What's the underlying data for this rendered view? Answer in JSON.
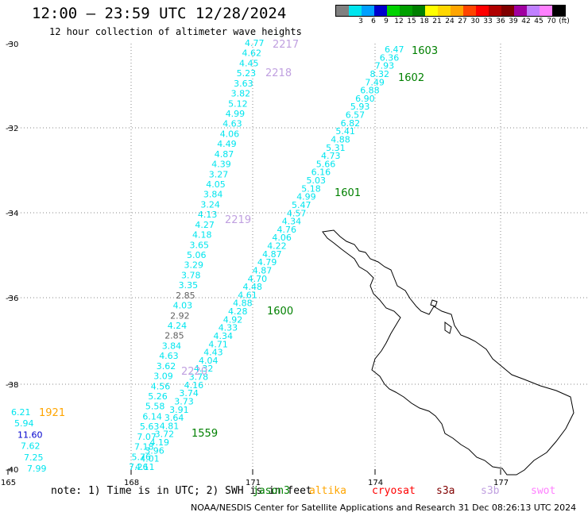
{
  "title": "12:00 — 23:59 UTC 12/28/2024",
  "subtitle": "12 hour collection of altimeter wave heights",
  "colorbar": {
    "colors": [
      "#808080",
      "#00e5ee",
      "#00a0ff",
      "#0000cd",
      "#00d200",
      "#00a000",
      "#008000",
      "#ffff00",
      "#ffd700",
      "#ffa500",
      "#ff4500",
      "#ff0000",
      "#b00000",
      "#800000",
      "#a000a0",
      "#c080ff",
      "#ff80ff",
      "#000000"
    ],
    "labels": [
      "",
      "3",
      "6",
      "9",
      "12",
      "15",
      "18",
      "21",
      "24",
      "27",
      "30",
      "33",
      "36",
      "39",
      "42",
      "45",
      "70",
      "(ft)"
    ]
  },
  "lat_labels": [
    "-30",
    "-32",
    "-34",
    "-36",
    "-38",
    "-40"
  ],
  "lon_labels": [
    "165",
    "168",
    "171",
    "174",
    "177"
  ],
  "tracks": [
    {
      "color": "#00e5ee",
      "values": [
        "4.77",
        "4.62",
        "4.45",
        "5.23",
        "3.63",
        "3.82",
        "5.12",
        "4.99",
        "4.63",
        "4.06",
        "4.49",
        "4.87",
        "4.39",
        "3.27",
        "4.05",
        "3.84",
        "3.24",
        "4.13",
        "4.27",
        "4.18",
        "3.65",
        "5.06",
        "3.29",
        "3.78",
        "3.35",
        "2.85",
        "4.03",
        "2.92",
        "4.24",
        "2.85",
        "3.84",
        "4.63",
        "3.62",
        "3.09",
        "4.56",
        "5.26",
        "5.58",
        "6.14",
        "5.63",
        "7.07",
        "7.18",
        "5.76",
        "7.26"
      ]
    },
    {
      "color": "#00e5ee",
      "values": [
        "6.47",
        "6.36",
        "7.93",
        "8.32",
        "7.49",
        "6.88",
        "6.90",
        "5.93",
        "6.57",
        "6.82",
        "5.41",
        "4.88",
        "5.31",
        "4.73",
        "5.66",
        "6.16",
        "5.03",
        "5.18",
        "4.99",
        "5.47",
        "4.57",
        "4.34",
        "4.76",
        "4.06",
        "4.22",
        "4.87",
        "4.79",
        "4.87",
        "4.70",
        "4.48",
        "4.61",
        "4.88",
        "4.28",
        "4.92",
        "4.33",
        "4.34",
        "4.71",
        "4.43",
        "4.04",
        "4.32",
        "3.78",
        "4.16",
        "3.74",
        "3.73",
        "3.91",
        "3.64",
        "4.81",
        "3.72",
        "4.19",
        "3.96",
        "4.01",
        "4.11"
      ]
    },
    {
      "color": "#00e5ee",
      "values": [
        "6.21",
        "5.94",
        "11.60",
        "7.62",
        "7.25",
        "7.99"
      ]
    }
  ],
  "pass_times": [
    {
      "text": "2217",
      "color": "#c0a0e0"
    },
    {
      "text": "2218",
      "color": "#c0a0e0"
    },
    {
      "text": "2219",
      "color": "#c0a0e0"
    },
    {
      "text": "2220",
      "color": "#c0a0e0"
    },
    {
      "text": "1603",
      "color": "#008000"
    },
    {
      "text": "1602",
      "color": "#008000"
    },
    {
      "text": "1601",
      "color": "#008000"
    },
    {
      "text": "1600",
      "color": "#008000"
    },
    {
      "text": "1559",
      "color": "#008000"
    },
    {
      "text": "1921",
      "color": "#ffa500"
    }
  ],
  "footnote": "note:  1) Time is in UTC; 2) SWH is in feet",
  "satellites": [
    {
      "name": "jason3",
      "color": "#008000"
    },
    {
      "name": "altika",
      "color": "#ffa500"
    },
    {
      "name": "cryosat",
      "color": "#ff0000"
    },
    {
      "name": "s3a",
      "color": "#800000"
    },
    {
      "name": "s3b",
      "color": "#c0a0e0"
    },
    {
      "name": "swot",
      "color": "#ff80ff"
    }
  ],
  "credit": "NOAA/NESDIS Center for Satellite Applications and Research    31 Dec 08:26:13 UTC 2024"
}
